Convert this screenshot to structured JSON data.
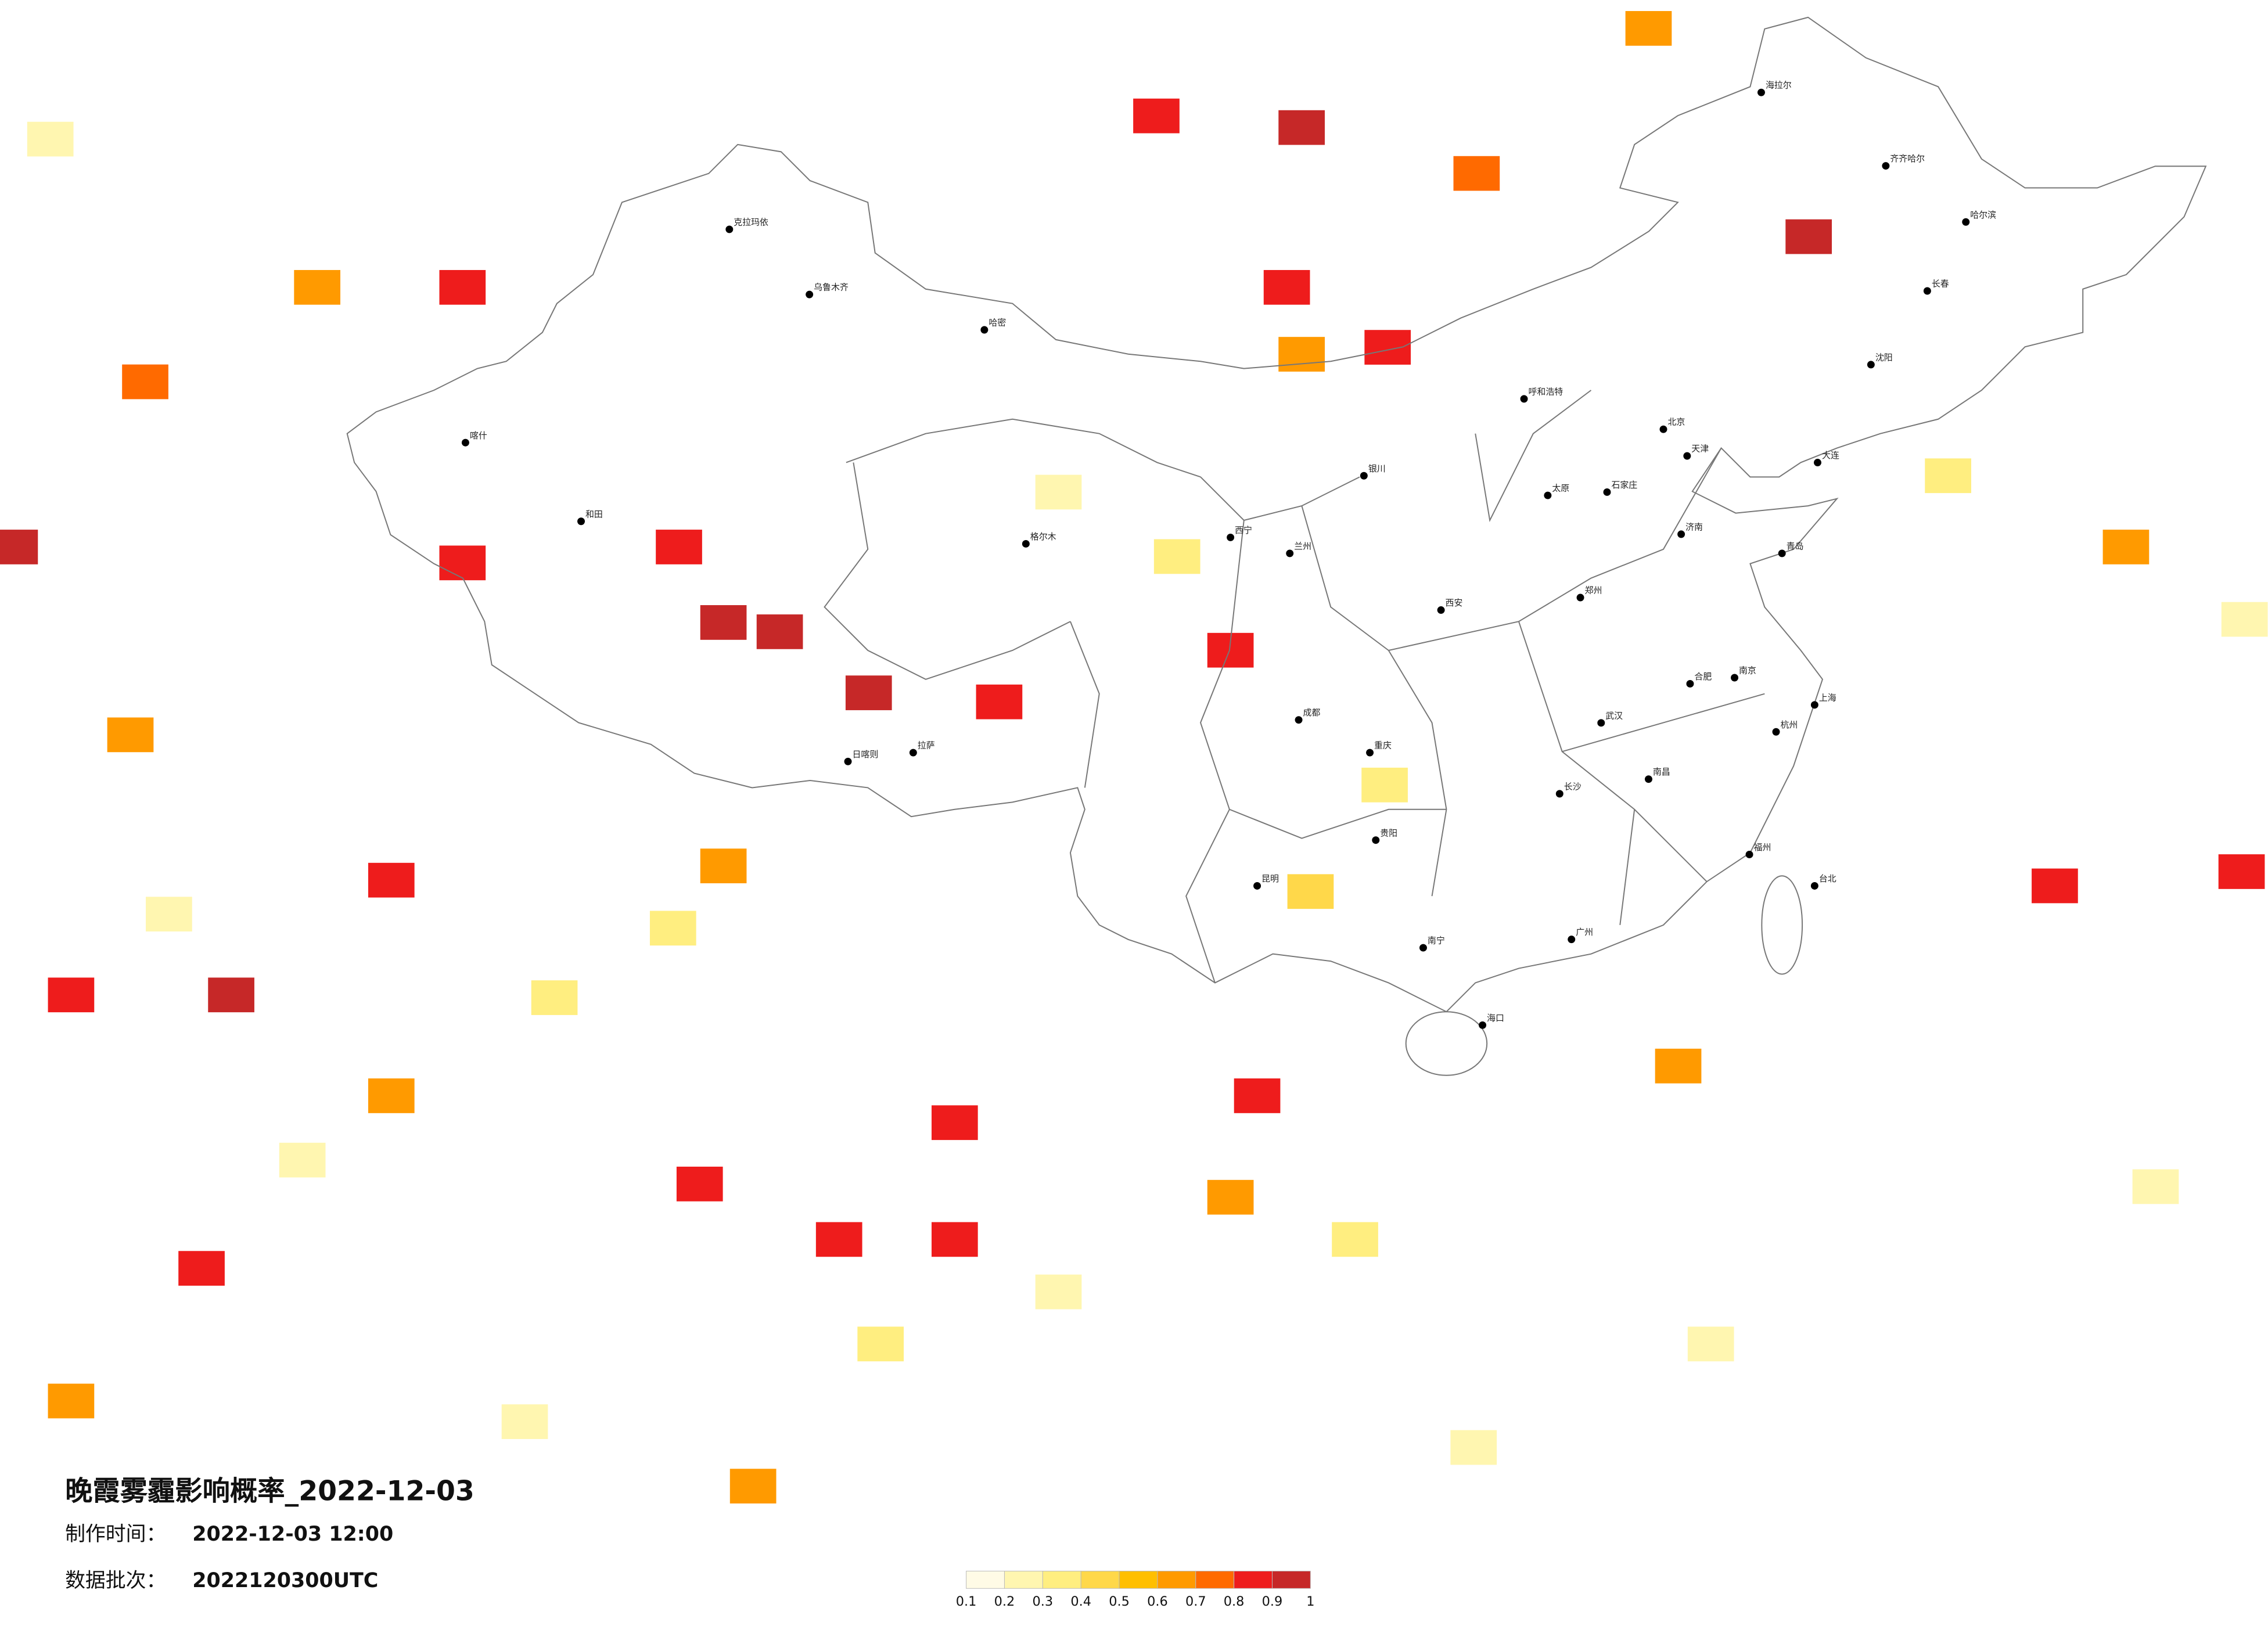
{
  "title": "晚霞雾霾影响概率_2022-12-03",
  "made_label": "制作时间：",
  "made_time": "2022-12-03 12:00",
  "batch_label": "数据批次：",
  "batch": "2022120300UTC",
  "legend": {
    "ticks": [
      0.1,
      0.2,
      0.3,
      0.4,
      0.5,
      0.6,
      0.7,
      0.8,
      0.9,
      1
    ],
    "colors": [
      "#fffbe6",
      "#fff6b0",
      "#ffee80",
      "#ffd84a",
      "#ffbf00",
      "#ff9a00",
      "#ff6a00",
      "#ee1c1c",
      "#c62828"
    ]
  },
  "cells": [
    {
      "lon": 84.7,
      "lat": 33.9,
      "p": 0.95
    },
    {
      "lon": 86.6,
      "lat": 33.6,
      "p": 0.95
    },
    {
      "lon": 89.6,
      "lat": 31.6,
      "p": 0.95
    },
    {
      "lon": 83.2,
      "lat": 36.3,
      "p": 0.85
    },
    {
      "lon": 75.9,
      "lat": 44.0,
      "p": 0.85
    },
    {
      "lon": 71.0,
      "lat": 44.0,
      "p": 0.6
    },
    {
      "lon": 65.2,
      "lat": 41.3,
      "p": 0.7
    },
    {
      "lon": 68.1,
      "lat": 21.1,
      "p": 0.95
    },
    {
      "lon": 62.7,
      "lat": 21.1,
      "p": 0.85
    },
    {
      "lon": 73.5,
      "lat": 25.2,
      "p": 0.85
    },
    {
      "lon": 84.7,
      "lat": 25.7,
      "p": 0.65
    },
    {
      "lon": 73.5,
      "lat": 17.4,
      "p": 0.6
    },
    {
      "lon": 92.5,
      "lat": 16.4,
      "p": 0.85
    },
    {
      "lon": 92.5,
      "lat": 12.0,
      "p": 0.85
    },
    {
      "lon": 88.6,
      "lat": 12.0,
      "p": 0.8
    },
    {
      "lon": 102.7,
      "lat": 17.4,
      "p": 0.85
    },
    {
      "lon": 104.2,
      "lat": 48.3,
      "p": 0.95
    },
    {
      "lon": 110.1,
      "lat": 47.1,
      "p": 0.75
    },
    {
      "lon": 103.7,
      "lat": 44.0,
      "p": 0.85
    },
    {
      "lon": 104.2,
      "lat": 42.1,
      "p": 0.65
    },
    {
      "lon": 107.1,
      "lat": 42.3,
      "p": 0.85
    },
    {
      "lon": 121.3,
      "lat": 45.4,
      "p": 0.95
    },
    {
      "lon": 101.8,
      "lat": 33.0,
      "p": 0.85
    },
    {
      "lon": 94.0,
      "lat": 31.3,
      "p": 0.85
    },
    {
      "lon": 129.6,
      "lat": 25.0,
      "p": 0.85
    },
    {
      "lon": 135.9,
      "lat": 25.5,
      "p": 0.8
    },
    {
      "lon": 132.0,
      "lat": 36.3,
      "p": 0.65
    },
    {
      "lon": 116.9,
      "lat": 18.5,
      "p": 0.6
    },
    {
      "lon": 67.1,
      "lat": 10.9,
      "p": 0.8
    },
    {
      "lon": 62.7,
      "lat": 5.8,
      "p": 0.6
    },
    {
      "lon": 83.9,
      "lat": 14.1,
      "p": 0.85
    },
    {
      "lon": 64.7,
      "lat": 30.2,
      "p": 0.65
    },
    {
      "lon": 60.8,
      "lat": 36.3,
      "p": 0.9
    },
    {
      "lon": 115.9,
      "lat": 50.8,
      "p": 0.65
    },
    {
      "lon": 99.3,
      "lat": 48.6,
      "p": 0.85
    },
    {
      "lon": 85.7,
      "lat": 2.5,
      "p": 0.6
    },
    {
      "lon": 101.8,
      "lat": 13.6,
      "p": 0.6
    },
    {
      "lon": 75.9,
      "lat": 35.8,
      "p": 0.85
    },
    {
      "lon": 96.0,
      "lat": 38.0,
      "p": 0.25
    },
    {
      "lon": 100.0,
      "lat": 36.0,
      "p": 0.3
    },
    {
      "lon": 79.0,
      "lat": 21.0,
      "p": 0.3
    },
    {
      "lon": 83.0,
      "lat": 23.5,
      "p": 0.35
    },
    {
      "lon": 70.5,
      "lat": 15.0,
      "p": 0.25
    },
    {
      "lon": 66.0,
      "lat": 24.0,
      "p": 0.2
    },
    {
      "lon": 90.0,
      "lat": 8.0,
      "p": 0.3
    },
    {
      "lon": 96.0,
      "lat": 10.0,
      "p": 0.25
    },
    {
      "lon": 106.0,
      "lat": 12.0,
      "p": 0.35
    },
    {
      "lon": 78.0,
      "lat": 5.0,
      "p": 0.2
    },
    {
      "lon": 126.0,
      "lat": 38.5,
      "p": 0.3
    },
    {
      "lon": 136.0,
      "lat": 34.0,
      "p": 0.25
    },
    {
      "lon": 107.0,
      "lat": 28.5,
      "p": 0.35
    },
    {
      "lon": 104.5,
      "lat": 24.8,
      "p": 0.4
    },
    {
      "lon": 62.0,
      "lat": 48.0,
      "p": 0.2
    },
    {
      "lon": 118.0,
      "lat": 8.0,
      "p": 0.2
    },
    {
      "lon": 110.0,
      "lat": 4.0,
      "p": 0.2
    },
    {
      "lon": 133.0,
      "lat": 14.0,
      "p": 0.2
    }
  ],
  "cities": [
    {
      "name": "北京",
      "lon": 116.4,
      "lat": 39.9
    },
    {
      "name": "上海",
      "lon": 121.5,
      "lat": 31.2
    },
    {
      "name": "广州",
      "lon": 113.3,
      "lat": 23.1
    },
    {
      "name": "乌鲁木齐",
      "lon": 87.6,
      "lat": 43.8
    },
    {
      "name": "拉萨",
      "lon": 91.1,
      "lat": 29.6
    },
    {
      "name": "哈尔滨",
      "lon": 126.6,
      "lat": 45.8
    },
    {
      "name": "长春",
      "lon": 125.3,
      "lat": 43.9
    },
    {
      "name": "沈阳",
      "lon": 123.4,
      "lat": 41.8
    },
    {
      "name": "呼和浩特",
      "lon": 111.7,
      "lat": 40.8
    },
    {
      "name": "银川",
      "lon": 106.3,
      "lat": 38.5
    },
    {
      "name": "兰州",
      "lon": 103.8,
      "lat": 36.1
    },
    {
      "name": "西宁",
      "lon": 101.8,
      "lat": 36.6
    },
    {
      "name": "成都",
      "lon": 104.1,
      "lat": 30.7
    },
    {
      "name": "重庆",
      "lon": 106.5,
      "lat": 29.6
    },
    {
      "name": "昆明",
      "lon": 102.7,
      "lat": 25.0
    },
    {
      "name": "贵阳",
      "lon": 106.7,
      "lat": 26.6
    },
    {
      "name": "南宁",
      "lon": 108.3,
      "lat": 22.8
    },
    {
      "name": "海口",
      "lon": 110.3,
      "lat": 20.0
    },
    {
      "name": "长沙",
      "lon": 112.9,
      "lat": 28.2
    },
    {
      "name": "武汉",
      "lon": 114.3,
      "lat": 30.6
    },
    {
      "name": "南昌",
      "lon": 115.9,
      "lat": 28.7
    },
    {
      "name": "福州",
      "lon": 119.3,
      "lat": 26.1
    },
    {
      "name": "杭州",
      "lon": 120.2,
      "lat": 30.3
    },
    {
      "name": "南京",
      "lon": 118.8,
      "lat": 32.1
    },
    {
      "name": "合肥",
      "lon": 117.3,
      "lat": 31.9
    },
    {
      "name": "济南",
      "lon": 117.0,
      "lat": 36.7
    },
    {
      "name": "郑州",
      "lon": 113.6,
      "lat": 34.7
    },
    {
      "name": "太原",
      "lon": 112.5,
      "lat": 37.9
    },
    {
      "name": "石家庄",
      "lon": 114.5,
      "lat": 38.0
    },
    {
      "name": "天津",
      "lon": 117.2,
      "lat": 39.1
    },
    {
      "name": "西安",
      "lon": 108.9,
      "lat": 34.3
    },
    {
      "name": "台北",
      "lon": 121.5,
      "lat": 25.0
    },
    {
      "name": "喀什",
      "lon": 76.0,
      "lat": 39.5
    },
    {
      "name": "和田",
      "lon": 79.9,
      "lat": 37.1
    },
    {
      "name": "克拉玛依",
      "lon": 84.9,
      "lat": 45.6
    },
    {
      "name": "哈密",
      "lon": 93.5,
      "lat": 42.8
    },
    {
      "name": "海拉尔",
      "lon": 119.7,
      "lat": 49.2
    },
    {
      "name": "齐齐哈尔",
      "lon": 123.9,
      "lat": 47.3
    },
    {
      "name": "大连",
      "lon": 121.6,
      "lat": 38.9
    },
    {
      "name": "青岛",
      "lon": 120.4,
      "lat": 36.1
    },
    {
      "name": "日喀则",
      "lon": 88.9,
      "lat": 29.3
    },
    {
      "name": "格尔木",
      "lon": 94.9,
      "lat": 36.4
    }
  ]
}
